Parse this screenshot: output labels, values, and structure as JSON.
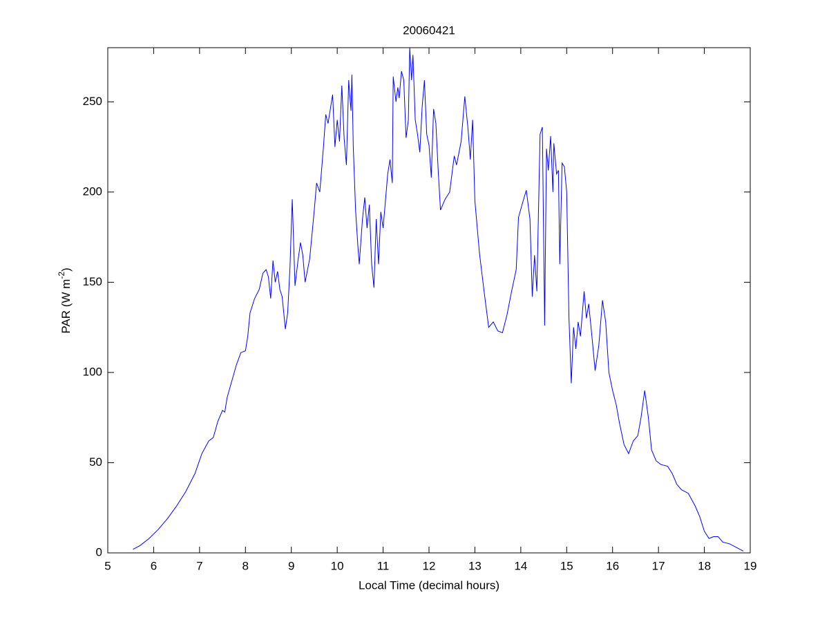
{
  "chart_data": {
    "type": "line",
    "title": "20060421",
    "xlabel": "Local Time (decimal hours)",
    "ylabel": {
      "text": "PAR (W m",
      "superscript": "-2",
      "suffix": ")"
    },
    "color": "#0000ff",
    "xlim": [
      5,
      19
    ],
    "xticks": [
      5,
      6,
      7,
      8,
      9,
      10,
      11,
      12,
      13,
      14,
      15,
      16,
      17,
      18,
      19
    ],
    "ylim": [
      0,
      280
    ],
    "yticks": [
      0,
      50,
      100,
      150,
      200,
      250
    ],
    "x": [
      5.55,
      5.7,
      5.9,
      6.1,
      6.3,
      6.5,
      6.7,
      6.9,
      7.05,
      7.2,
      7.3,
      7.4,
      7.5,
      7.55,
      7.6,
      7.7,
      7.8,
      7.9,
      8.0,
      8.05,
      8.1,
      8.2,
      8.3,
      8.38,
      8.45,
      8.5,
      8.55,
      8.6,
      8.65,
      8.7,
      8.75,
      8.8,
      8.87,
      8.92,
      8.97,
      9.02,
      9.08,
      9.15,
      9.2,
      9.25,
      9.3,
      9.4,
      9.5,
      9.55,
      9.62,
      9.7,
      9.75,
      9.8,
      9.9,
      9.95,
      10.0,
      10.05,
      10.1,
      10.15,
      10.2,
      10.25,
      10.3,
      10.32,
      10.35,
      10.4,
      10.45,
      10.48,
      10.55,
      10.6,
      10.65,
      10.7,
      10.75,
      10.8,
      10.85,
      10.9,
      10.95,
      11.0,
      11.1,
      11.15,
      11.2,
      11.22,
      11.28,
      11.32,
      11.35,
      11.4,
      11.45,
      11.5,
      11.55,
      11.58,
      11.62,
      11.65,
      11.7,
      11.75,
      11.8,
      11.85,
      11.9,
      11.95,
      12.0,
      12.05,
      12.1,
      12.15,
      12.2,
      12.25,
      12.35,
      12.45,
      12.55,
      12.6,
      12.7,
      12.78,
      12.85,
      12.9,
      12.95,
      13.0,
      13.1,
      13.2,
      13.3,
      13.4,
      13.5,
      13.6,
      13.7,
      13.8,
      13.9,
      13.95,
      14.05,
      14.12,
      14.2,
      14.25,
      14.3,
      14.35,
      14.42,
      14.47,
      14.52,
      14.56,
      14.6,
      14.65,
      14.7,
      14.72,
      14.78,
      14.82,
      14.85,
      14.9,
      14.95,
      15.0,
      15.05,
      15.1,
      15.15,
      15.2,
      15.25,
      15.3,
      15.38,
      15.43,
      15.48,
      15.55,
      15.62,
      15.7,
      15.78,
      15.85,
      15.92,
      16.0,
      16.08,
      16.15,
      16.25,
      16.35,
      16.45,
      16.55,
      16.62,
      16.7,
      16.78,
      16.85,
      16.95,
      17.05,
      17.2,
      17.3,
      17.4,
      17.5,
      17.65,
      17.8,
      17.9,
      18.0,
      18.1,
      18.2,
      18.3,
      18.4,
      18.55,
      18.7,
      18.85
    ],
    "values": [
      2,
      4,
      8,
      13,
      19,
      26,
      34,
      44,
      55,
      62,
      64,
      73,
      79,
      78,
      86,
      95,
      104,
      111,
      112,
      120,
      133,
      141,
      146,
      155,
      157,
      153,
      141,
      162,
      150,
      156,
      146,
      142,
      124,
      133,
      158,
      196,
      148,
      163,
      172,
      165,
      150,
      163,
      190,
      205,
      200,
      225,
      243,
      238,
      254,
      225,
      240,
      228,
      259,
      230,
      215,
      262,
      245,
      265,
      225,
      190,
      170,
      160,
      185,
      197,
      180,
      193,
      160,
      147,
      185,
      160,
      189,
      180,
      210,
      218,
      205,
      264,
      250,
      258,
      252,
      267,
      262,
      230,
      240,
      280,
      262,
      276,
      240,
      232,
      222,
      247,
      262,
      232,
      226,
      208,
      246,
      238,
      212,
      190,
      196,
      200,
      220,
      215,
      228,
      253,
      235,
      218,
      240,
      195,
      166,
      145,
      125,
      128,
      123,
      122,
      132,
      145,
      157,
      186,
      195,
      201,
      185,
      142,
      165,
      145,
      232,
      236,
      126,
      224,
      212,
      231,
      200,
      227,
      210,
      212,
      160,
      216,
      214,
      200,
      130,
      94,
      125,
      113,
      128,
      120,
      145,
      130,
      138,
      120,
      101,
      115,
      140,
      128,
      100,
      90,
      82,
      72,
      60,
      55,
      62,
      65,
      75,
      90,
      75,
      57,
      51,
      49,
      48,
      44,
      38,
      35,
      33,
      26,
      20,
      12,
      8,
      9,
      9,
      6,
      5,
      3,
      1
    ]
  }
}
